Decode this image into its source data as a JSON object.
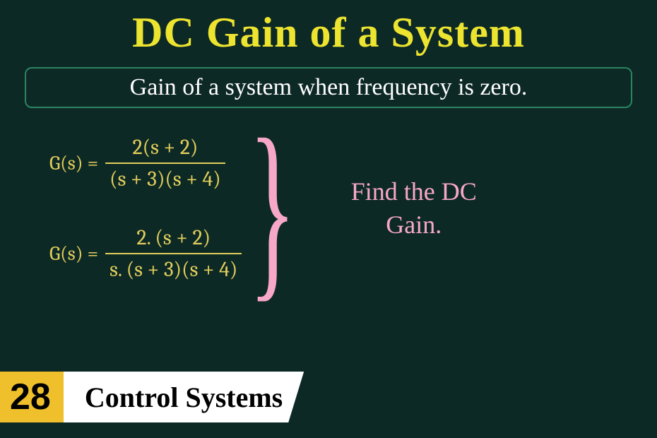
{
  "title": "DC Gain of a System",
  "definition": "Gain of a system when frequency is zero.",
  "equations": {
    "lhs": "G(s) =",
    "eq1": {
      "num": "2(s + 2)",
      "den": "(s + 3)(s + 4)"
    },
    "eq2": {
      "num": "2. (s + 2)",
      "den": "s. (s + 3)(s + 4)"
    },
    "text_color": "#e2ce5a"
  },
  "brace_glyph": "}",
  "prompt": {
    "line1": "Find the DC",
    "line2": "Gain."
  },
  "footer": {
    "episode": "28",
    "subject": "Control Systems"
  },
  "colors": {
    "background": "#0d2926",
    "title": "#ece42f",
    "definition_border": "#2a8560",
    "definition_text": "#ffffff",
    "pink": "#f7a8c8",
    "badge_bg": "#efc02b",
    "bar_bg": "#ffffff"
  }
}
